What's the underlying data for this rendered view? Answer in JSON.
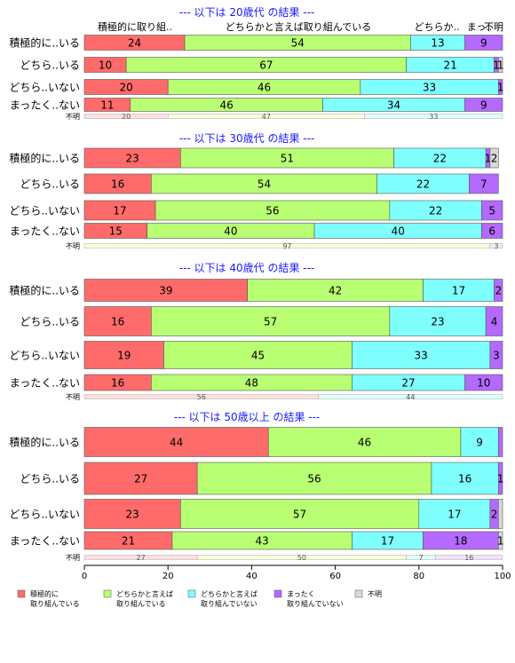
{
  "chart_data": {
    "type": "bar",
    "orientation": "horizontal",
    "stacked": "100%",
    "xlim": [
      0,
      100
    ],
    "x_ticks": [
      "0",
      "20",
      "40",
      "60",
      "80",
      "100"
    ],
    "top_header_labels": [
      "積極的に取り組..",
      "どちらかと言えば取り組んでいる",
      "どちらか..",
      "まっ..",
      "不明"
    ],
    "unknown_row_label": "不明",
    "legend": {
      "position": "bottom-left",
      "items": [
        {
          "line1": "積極的に",
          "line2": "取り組んでいる",
          "color": "#ff6b6b"
        },
        {
          "line1": "どちらかと言えば",
          "line2": "取り組んでいる",
          "color": "#b9ff73"
        },
        {
          "line1": "どちらかと言えば",
          "line2": "取り組んでいない",
          "color": "#80ffff"
        },
        {
          "line1": "まったく",
          "line2": "取り組んでいない",
          "color": "#b469ff"
        },
        {
          "line1": "不明",
          "line2": "",
          "color": "#d9d9d9"
        }
      ]
    },
    "panels": [
      {
        "title": "--- 以下は 20歳代 の結果 ---",
        "rows": [
          {
            "label": "積極的に..いる",
            "values": [
              24,
              54,
              13,
              9,
              0
            ],
            "labels": [
              "24",
              "54",
              "13",
              "9",
              ""
            ]
          },
          {
            "label": "どちら..いる",
            "values": [
              10,
              67,
              21,
              1,
              1
            ],
            "labels": [
              "10",
              "67",
              "21",
              "1",
              "1"
            ]
          },
          {
            "label": "どちら..いない",
            "values": [
              20,
              46,
              33,
              1,
              0
            ],
            "labels": [
              "20",
              "46",
              "33",
              "1",
              ""
            ]
          },
          {
            "label": "まったく..ない",
            "values": [
              11,
              46,
              34,
              9,
              0
            ],
            "labels": [
              "11",
              "46",
              "34",
              "9",
              ""
            ]
          }
        ],
        "unknown": {
          "values": [
            20,
            47,
            33,
            0,
            0
          ],
          "labels": [
            "20",
            "47",
            "33",
            "",
            ""
          ]
        }
      },
      {
        "title": "--- 以下は 30歳代 の結果 ---",
        "rows": [
          {
            "label": "積極的に..いる",
            "values": [
              23,
              51,
              22,
              1,
              2
            ],
            "labels": [
              "23",
              "51",
              "22",
              "1",
              "2"
            ]
          },
          {
            "label": "どちら..いる",
            "values": [
              16,
              54,
              22,
              7,
              0
            ],
            "labels": [
              "16",
              "54",
              "22",
              "7",
              ""
            ]
          },
          {
            "label": "どちら..いない",
            "values": [
              17,
              56,
              22,
              5,
              0
            ],
            "labels": [
              "17",
              "56",
              "22",
              "5",
              ""
            ]
          },
          {
            "label": "まったく..ない",
            "values": [
              15,
              40,
              40,
              6,
              0
            ],
            "labels": [
              "15",
              "40",
              "40",
              "6",
              ""
            ]
          }
        ],
        "unknown": {
          "values": [
            0,
            97,
            0,
            0,
            3
          ],
          "labels": [
            "",
            "97",
            "",
            "",
            "3"
          ]
        }
      },
      {
        "title": "--- 以下は 40歳代 の結果 ---",
        "rows": [
          {
            "label": "積極的に..いる",
            "values": [
              39,
              42,
              17,
              2,
              0
            ],
            "labels": [
              "39",
              "42",
              "17",
              "2",
              ""
            ]
          },
          {
            "label": "どちら..いる",
            "values": [
              16,
              57,
              23,
              4,
              0
            ],
            "labels": [
              "16",
              "57",
              "23",
              "4",
              ""
            ]
          },
          {
            "label": "どちら..いない",
            "values": [
              19,
              45,
              33,
              3,
              0
            ],
            "labels": [
              "19",
              "45",
              "33",
              "3",
              ""
            ]
          },
          {
            "label": "まったく..ない",
            "values": [
              16,
              48,
              27,
              10,
              0
            ],
            "labels": [
              "16",
              "48",
              "27",
              "10",
              ""
            ]
          }
        ],
        "unknown": {
          "values": [
            56,
            0,
            44,
            0,
            0
          ],
          "labels": [
            "56",
            "",
            "44",
            "",
            ""
          ]
        }
      },
      {
        "title": "--- 以下は 50歳以上 の結果 ---",
        "rows": [
          {
            "label": "積極的に..いる",
            "values": [
              44,
              46,
              9,
              1,
              0
            ],
            "labels": [
              "44",
              "46",
              "9",
              "",
              ""
            ]
          },
          {
            "label": "どちら..いる",
            "values": [
              27,
              56,
              16,
              1,
              0
            ],
            "labels": [
              "27",
              "56",
              "16",
              "1",
              ""
            ]
          },
          {
            "label": "どちら..いない",
            "values": [
              23,
              57,
              17,
              2,
              1
            ],
            "labels": [
              "23",
              "57",
              "17",
              "2",
              ""
            ]
          },
          {
            "label": "まったく..ない",
            "values": [
              21,
              43,
              17,
              18,
              1
            ],
            "labels": [
              "21",
              "43",
              "17",
              "18",
              "1"
            ]
          }
        ],
        "unknown": {
          "values": [
            27,
            50,
            7,
            16,
            0
          ],
          "labels": [
            "27",
            "50",
            "7",
            "16",
            ""
          ]
        }
      }
    ]
  }
}
